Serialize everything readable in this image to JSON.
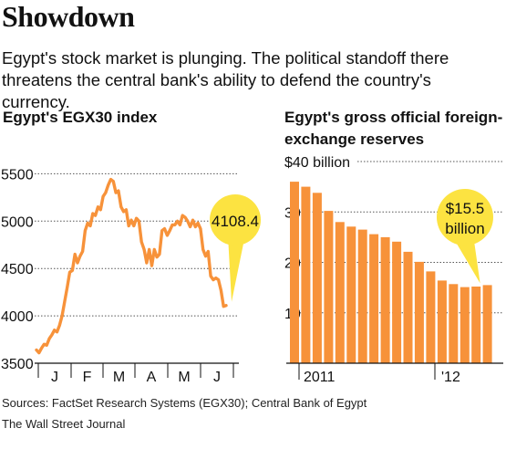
{
  "title": "Showdown",
  "subtitle": "Egypt's stock market is plunging. The political standoff there threatens the central bank's ability to defend the country's currency.",
  "source": "Sources: FactSet Research Systems (EGX30); Central Bank of Egypt",
  "credit": "The Wall Street Journal",
  "colors": {
    "accent": "#f7923a",
    "callout": "#fce341",
    "grid": "#555555"
  },
  "chart_data": [
    {
      "type": "line",
      "title": "Egypt's EGX30 index",
      "ylim": [
        3500,
        5600
      ],
      "y_ticks": [
        3500,
        4000,
        4500,
        5000,
        5500
      ],
      "y_tick_labels": [
        "3500",
        "4000",
        "4500",
        "5000",
        "5500"
      ],
      "x_tick_labels": [
        "J",
        "F",
        "M",
        "A",
        "M",
        "J"
      ],
      "callout": "4108.4",
      "series": [
        {
          "values": [
            3640,
            3610,
            3660,
            3700,
            3690,
            3760,
            3800,
            3850,
            3830,
            3900,
            4000,
            4150,
            4300,
            4460,
            4480,
            4650,
            4560,
            4630,
            4680,
            4900,
            4980,
            4950,
            5080,
            5060,
            5150,
            5120,
            5260,
            5300,
            5380,
            5440,
            5420,
            5300,
            5320,
            5150,
            5100,
            5120,
            4950,
            5010,
            4950,
            5030,
            5000,
            4780,
            4700,
            4560,
            4700,
            4530,
            4700,
            4620,
            4650,
            4900,
            4920,
            4850,
            4900,
            4960,
            4960,
            5000,
            4960,
            5060,
            5040,
            5000,
            4940,
            5010,
            4940,
            4980,
            4920,
            4700,
            4630,
            4680,
            4420,
            4380,
            4400,
            4380,
            4270,
            4100,
            4108.4
          ]
        }
      ]
    },
    {
      "type": "bar",
      "title": "Egypt's gross official foreign-exchange reserves",
      "ylim": [
        0,
        40
      ],
      "y_tick_labels": [
        "$40 billion",
        "30",
        "20",
        "10"
      ],
      "x_tick_labels": [
        "2011",
        "'12"
      ],
      "callout": "$15.5 billion",
      "categories": [
        "Dec 2010",
        "Jan 2011",
        "Feb 2011",
        "Mar 2011",
        "Apr 2011",
        "May 2011",
        "Jun 2011",
        "Jul 2011",
        "Aug 2011",
        "Sep 2011",
        "Oct 2011",
        "Nov 2011",
        "Dec 2011",
        "Jan 2012",
        "Feb 2012",
        "Mar 2012",
        "Apr 2012",
        "May 2012"
      ],
      "values": [
        36,
        35,
        33.8,
        30.2,
        28,
        27.1,
        26.5,
        25.6,
        25,
        24.1,
        22.1,
        20.1,
        18.2,
        16.4,
        15.7,
        15.1,
        15.2,
        15.5
      ]
    }
  ]
}
